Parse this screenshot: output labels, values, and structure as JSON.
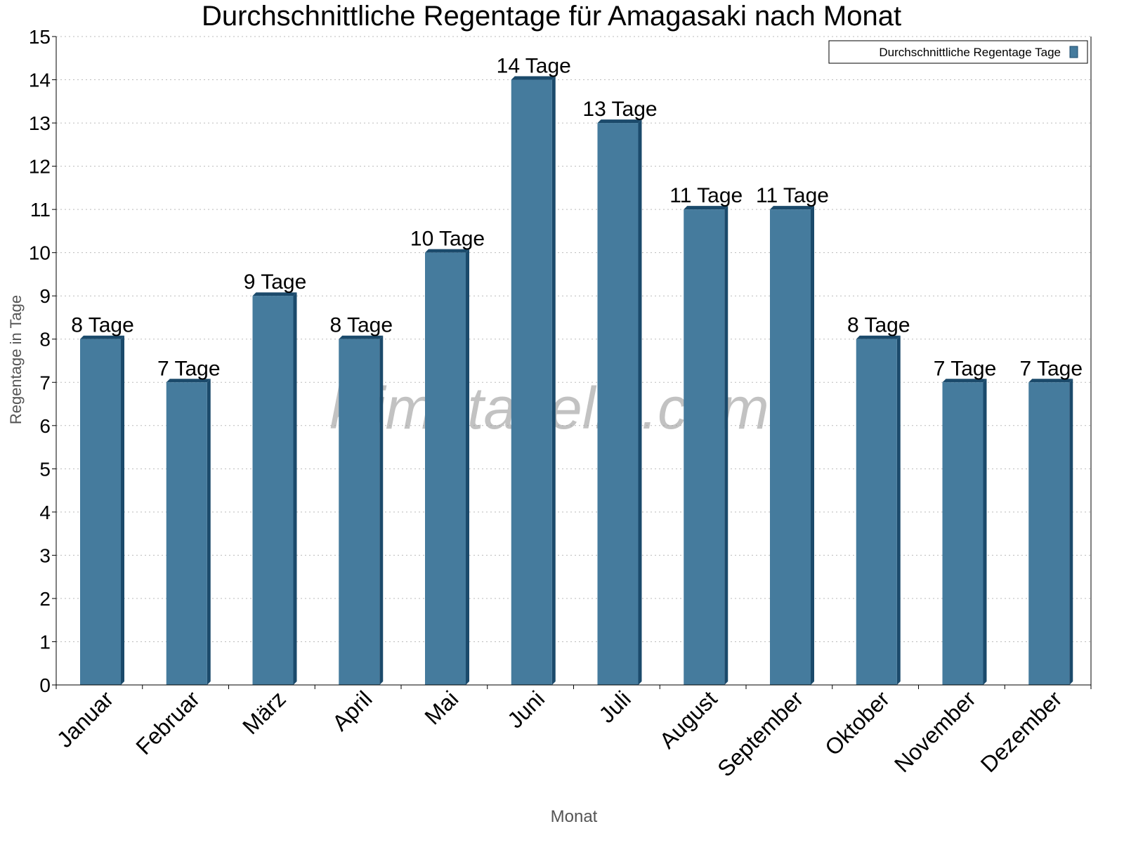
{
  "chart_data": {
    "type": "bar",
    "title": "Durchschnittliche Regentage für Amagasaki nach Monat",
    "xlabel": "Monat",
    "ylabel": "Regentage in Tage",
    "categories": [
      "Januar",
      "Februar",
      "März",
      "April",
      "Mai",
      "Juni",
      "Juli",
      "August",
      "September",
      "Oktober",
      "November",
      "Dezember"
    ],
    "series": [
      {
        "name": "Durchschnittliche Regentage Tage",
        "values": [
          8,
          7,
          9,
          8,
          10,
          14,
          13,
          11,
          11,
          8,
          7,
          7
        ]
      }
    ],
    "data_labels": [
      "8 Tage",
      "7 Tage",
      "9 Tage",
      "8 Tage",
      "10 Tage",
      "14 Tage",
      "13 Tage",
      "11 Tage",
      "11 Tage",
      "8 Tage",
      "7 Tage",
      "7 Tage"
    ],
    "ylim": [
      0,
      15
    ],
    "yticks": [
      0,
      1,
      2,
      3,
      4,
      5,
      6,
      7,
      8,
      9,
      10,
      11,
      12,
      13,
      14,
      15
    ],
    "grid": true,
    "legend_position": "top-right",
    "colors": {
      "bar": "#457b9d",
      "bar_side": "#1b4a6b"
    },
    "watermark": "klimatabelle.com"
  }
}
